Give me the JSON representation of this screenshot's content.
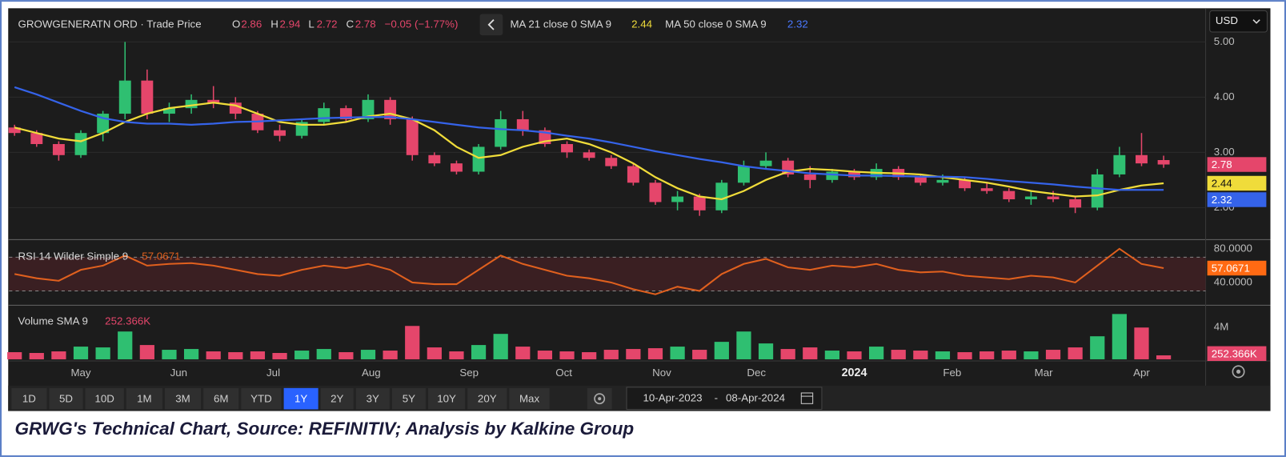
{
  "header": {
    "symbol": "GROWGENERATN ORD · Trade Price",
    "ohlc_letters": [
      "O",
      "H",
      "L",
      "C"
    ],
    "change": "−0.05 (−1.77%)"
  },
  "currency": "USD",
  "toolbar": {
    "ranges": [
      "1D",
      "5D",
      "10D",
      "1M",
      "3M",
      "6M",
      "YTD",
      "1Y",
      "2Y",
      "3Y",
      "5Y",
      "10Y",
      "20Y",
      "Max"
    ],
    "active": "1Y"
  },
  "date_range": {
    "from": "10-Apr-2023",
    "separator": "-",
    "to": "08-Apr-2024"
  },
  "caption": "GRWG's Technical Chart, Source: REFINITIV; Analysis by Kalkine Group",
  "chart_data": [
    {
      "type": "candlestick",
      "up_color": "#2fbf71",
      "down_color": "#e5466b",
      "grid": true,
      "xlim": [
        -0.25,
        53.9
      ],
      "xticks": [
        {
          "value": 3,
          "label": "May"
        },
        {
          "value": 7.43,
          "label": "Jun"
        },
        {
          "value": 11.71,
          "label": "Jul"
        },
        {
          "value": 16.14,
          "label": "Aug"
        },
        {
          "value": 20.57,
          "label": "Sep"
        },
        {
          "value": 24.86,
          "label": "Oct"
        },
        {
          "value": 29.29,
          "label": "Nov"
        },
        {
          "value": 33.57,
          "label": "Dec"
        },
        {
          "value": 38,
          "label": "2024"
        },
        {
          "value": 42.43,
          "label": "Feb"
        },
        {
          "value": 46.57,
          "label": "Mar"
        },
        {
          "value": 51,
          "label": "Apr"
        }
      ],
      "ylim": [
        1.45,
        5.55
      ],
      "yticks": [
        {
          "value": 5,
          "label": "5.00"
        },
        {
          "value": 4,
          "label": "4.00"
        },
        {
          "value": 3,
          "label": "3.00"
        },
        {
          "value": 2,
          "label": "2.00"
        }
      ],
      "open": [
        3.45,
        3.35,
        3.15,
        2.95,
        3.35,
        3.7,
        4.3,
        3.7,
        3.8,
        3.95,
        3.9,
        3.7,
        3.4,
        3.3,
        3.55,
        3.8,
        3.6,
        3.95,
        3.6,
        2.95,
        2.8,
        2.65,
        3.1,
        3.6,
        3.4,
        3.15,
        3.0,
        2.9,
        2.75,
        2.45,
        2.1,
        2.2,
        1.95,
        2.45,
        2.75,
        2.85,
        2.6,
        2.5,
        2.65,
        2.55,
        2.7,
        2.55,
        2.45,
        2.5,
        2.35,
        2.3,
        2.15,
        2.2,
        2.15,
        2.0,
        2.6,
        2.95,
        2.86
      ],
      "high": [
        3.5,
        3.4,
        3.2,
        3.4,
        3.75,
        5.0,
        4.5,
        3.9,
        4.05,
        4.2,
        4.0,
        3.75,
        3.5,
        3.6,
        3.9,
        3.85,
        4.05,
        4.0,
        3.65,
        3.0,
        2.85,
        3.15,
        3.75,
        3.75,
        3.45,
        3.2,
        3.05,
        2.95,
        2.8,
        2.5,
        2.3,
        2.25,
        2.5,
        2.85,
        3.0,
        2.9,
        2.75,
        2.7,
        2.7,
        2.8,
        2.75,
        2.6,
        2.6,
        2.55,
        2.45,
        2.35,
        2.3,
        2.3,
        2.2,
        2.7,
        3.1,
        3.35,
        2.94
      ],
      "low": [
        3.3,
        3.1,
        2.85,
        2.9,
        3.2,
        3.6,
        3.6,
        3.55,
        3.7,
        3.8,
        3.6,
        3.35,
        3.2,
        3.25,
        3.5,
        3.55,
        3.55,
        3.5,
        2.85,
        2.75,
        2.6,
        2.6,
        3.05,
        3.3,
        3.1,
        2.9,
        2.85,
        2.7,
        2.4,
        2.05,
        1.95,
        1.85,
        1.9,
        2.4,
        2.7,
        2.55,
        2.35,
        2.45,
        2.5,
        2.5,
        2.5,
        2.4,
        2.4,
        2.3,
        2.25,
        2.1,
        2.05,
        2.1,
        1.9,
        1.95,
        2.55,
        2.75,
        2.72
      ],
      "close": [
        3.35,
        3.15,
        2.95,
        3.35,
        3.7,
        4.3,
        3.7,
        3.8,
        3.95,
        3.9,
        3.7,
        3.4,
        3.3,
        3.55,
        3.8,
        3.6,
        3.95,
        3.6,
        2.95,
        2.8,
        2.65,
        3.1,
        3.6,
        3.4,
        3.15,
        3.0,
        2.9,
        2.75,
        2.45,
        2.1,
        2.2,
        1.95,
        2.45,
        2.75,
        2.85,
        2.6,
        2.5,
        2.65,
        2.55,
        2.7,
        2.55,
        2.45,
        2.5,
        2.35,
        2.3,
        2.15,
        2.2,
        2.15,
        2.0,
        2.6,
        2.95,
        2.8,
        2.78
      ],
      "lines": [
        {
          "name": "MA 21 close 0 SMA 9",
          "color": "#f0dc3a",
          "values": [
            3.45,
            3.35,
            3.25,
            3.2,
            3.35,
            3.55,
            3.7,
            3.8,
            3.85,
            3.9,
            3.85,
            3.7,
            3.55,
            3.5,
            3.5,
            3.55,
            3.65,
            3.7,
            3.6,
            3.4,
            3.1,
            2.9,
            2.95,
            3.1,
            3.2,
            3.25,
            3.15,
            3.0,
            2.8,
            2.55,
            2.35,
            2.2,
            2.15,
            2.3,
            2.5,
            2.65,
            2.7,
            2.68,
            2.65,
            2.63,
            2.62,
            2.6,
            2.55,
            2.5,
            2.45,
            2.38,
            2.3,
            2.25,
            2.2,
            2.22,
            2.32,
            2.4,
            2.44
          ]
        },
        {
          "name": "MA 50 close 0 SMA 9",
          "color": "#3563e9",
          "values": [
            4.18,
            4.05,
            3.9,
            3.75,
            3.62,
            3.55,
            3.52,
            3.52,
            3.5,
            3.52,
            3.55,
            3.56,
            3.58,
            3.6,
            3.62,
            3.63,
            3.64,
            3.64,
            3.6,
            3.55,
            3.5,
            3.45,
            3.42,
            3.4,
            3.36,
            3.3,
            3.25,
            3.18,
            3.1,
            3.02,
            2.95,
            2.88,
            2.82,
            2.75,
            2.7,
            2.66,
            2.62,
            2.6,
            2.58,
            2.58,
            2.57,
            2.56,
            2.56,
            2.55,
            2.52,
            2.48,
            2.45,
            2.42,
            2.38,
            2.35,
            2.32,
            2.32,
            2.32
          ]
        }
      ]
    },
    {
      "type": "line",
      "title": "RSI 14 Wilder Simple 9",
      "color": "#e0601e",
      "bands": [
        30,
        70
      ],
      "ylim": [
        15,
        88
      ],
      "yticks": [
        {
          "value": 80,
          "label": "80.0000"
        },
        {
          "value": 40,
          "label": "40.0000"
        }
      ],
      "values": [
        50,
        45,
        42,
        55,
        60,
        72,
        60,
        62,
        63,
        60,
        55,
        50,
        48,
        55,
        60,
        57,
        62,
        55,
        40,
        38,
        38,
        55,
        72,
        62,
        55,
        48,
        45,
        40,
        32,
        26,
        35,
        30,
        50,
        62,
        68,
        58,
        55,
        60,
        58,
        62,
        55,
        52,
        53,
        48,
        46,
        44,
        48,
        46,
        40,
        60,
        80,
        62,
        57.0671
      ]
    },
    {
      "type": "bar",
      "title": "Volume SMA 9",
      "sma": 252366,
      "sma_label": "252.366K",
      "ylim": [
        0,
        6500000
      ],
      "yticks": [
        {
          "value": 4000000,
          "label": "4M"
        }
      ],
      "values": [
        900000,
        800000,
        1000000,
        1600000,
        1500000,
        3500000,
        1800000,
        1200000,
        1300000,
        1000000,
        900000,
        1000000,
        800000,
        1100000,
        1300000,
        900000,
        1200000,
        1100000,
        4200000,
        1500000,
        1000000,
        1800000,
        3200000,
        1600000,
        1100000,
        1000000,
        900000,
        1200000,
        1300000,
        1400000,
        1600000,
        1200000,
        2200000,
        3500000,
        2000000,
        1300000,
        1500000,
        1100000,
        1000000,
        1600000,
        1200000,
        1100000,
        1000000,
        900000,
        1000000,
        1100000,
        1000000,
        1200000,
        1500000,
        2900000,
        5700000,
        4000000,
        500000
      ]
    }
  ]
}
